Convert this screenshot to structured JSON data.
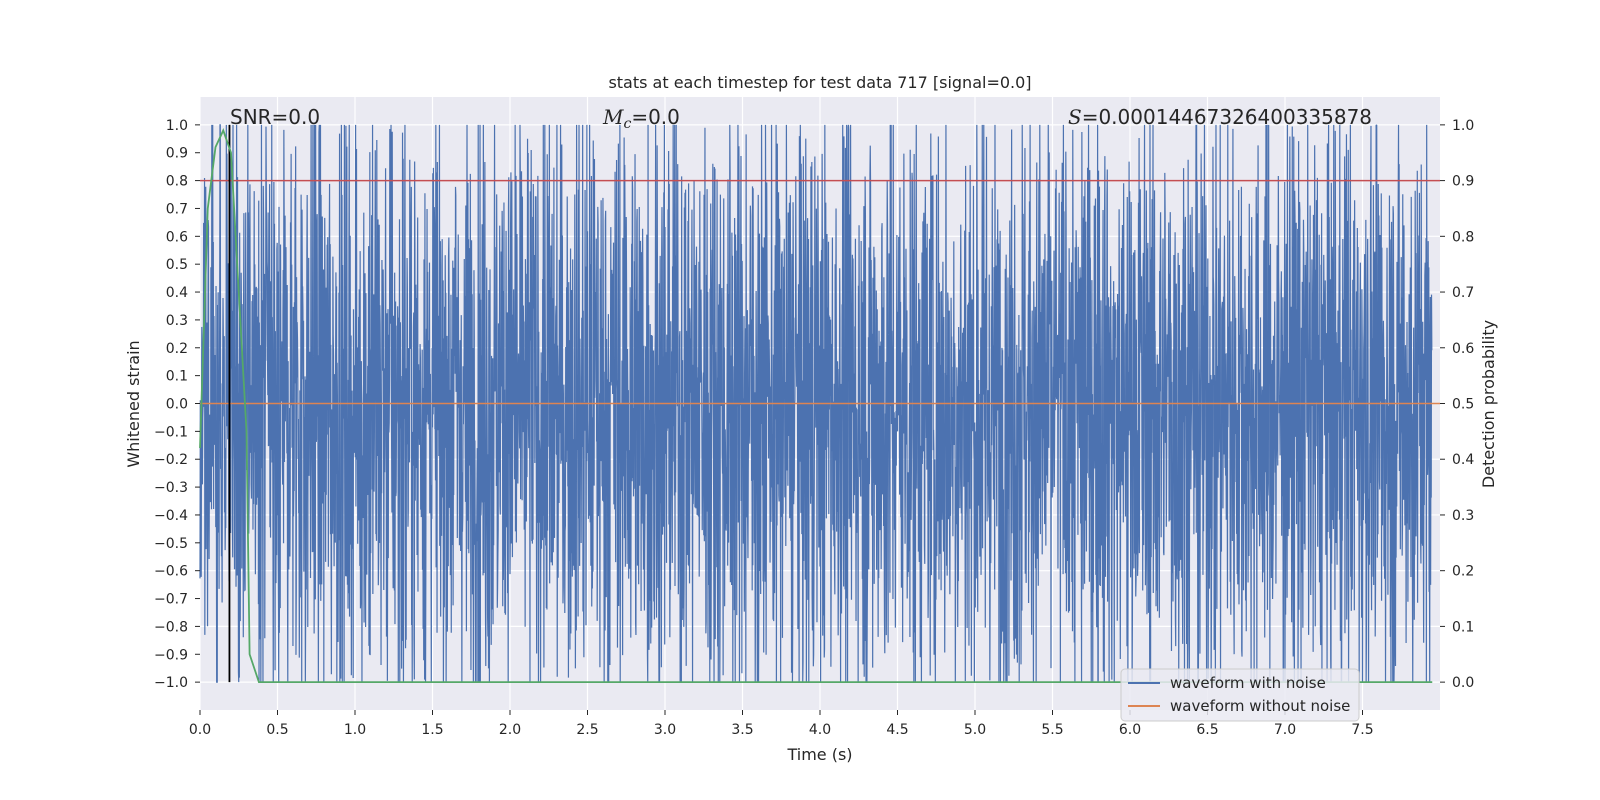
{
  "chart_data": {
    "type": "line",
    "title": "stats at each timestep for test data 717 [signal=0.0]",
    "xlabel": "Time (s)",
    "ylabel_left": "Whitened strain",
    "ylabel_right": "Detection probability",
    "xlim": [
      0.0,
      8.0
    ],
    "ylim_left": [
      -1.1,
      1.1
    ],
    "ylim_right": [
      -0.05,
      1.05
    ],
    "x_ticks": [
      "0.0",
      "0.5",
      "1.0",
      "1.5",
      "2.0",
      "2.5",
      "3.0",
      "3.5",
      "4.0",
      "4.5",
      "5.0",
      "5.5",
      "6.0",
      "6.5",
      "7.0",
      "7.5"
    ],
    "x_tick_values": [
      0.0,
      0.5,
      1.0,
      1.5,
      2.0,
      2.5,
      3.0,
      3.5,
      4.0,
      4.5,
      5.0,
      5.5,
      6.0,
      6.5,
      7.0,
      7.5
    ],
    "y_left_ticks": [
      "1.0",
      "0.9",
      "0.8",
      "0.7",
      "0.6",
      "0.5",
      "0.4",
      "0.3",
      "0.2",
      "0.1",
      "0.0",
      "−0.1",
      "−0.2",
      "−0.3",
      "−0.4",
      "−0.5",
      "−0.6",
      "−0.7",
      "−0.8",
      "−0.9",
      "−1.0"
    ],
    "y_left_tick_values": [
      1.0,
      0.9,
      0.8,
      0.7,
      0.6,
      0.5,
      0.4,
      0.3,
      0.2,
      0.1,
      0.0,
      -0.1,
      -0.2,
      -0.3,
      -0.4,
      -0.5,
      -0.6,
      -0.7,
      -0.8,
      -0.9,
      -1.0
    ],
    "y_right_ticks": [
      "1.0",
      "0.9",
      "0.8",
      "0.7",
      "0.6",
      "0.5",
      "0.4",
      "0.3",
      "0.2",
      "0.1",
      "0.0"
    ],
    "y_right_tick_values": [
      1.0,
      0.9,
      0.8,
      0.7,
      0.6,
      0.5,
      0.4,
      0.3,
      0.2,
      0.1,
      0.0
    ],
    "annotations": {
      "snr": "SNR=0.0",
      "mc_symbol": "M",
      "mc_sub": "c",
      "mc_value": "=0.0",
      "s_symbol": "S",
      "s_value": "=0.00014467326400335878"
    },
    "series": [
      {
        "name": "waveform with noise",
        "color": "#4c72b0",
        "axis": "left",
        "description_range": [
          -1.0,
          1.0
        ],
        "samples_per_second": 512
      },
      {
        "name": "waveform without noise",
        "color": "#dd8452",
        "axis": "left",
        "x": [
          0.0,
          8.0
        ],
        "y": [
          0.0,
          0.0
        ]
      },
      {
        "name": "detection probability",
        "color": "#55a868",
        "axis": "right",
        "x": [
          0.0,
          0.05,
          0.1,
          0.15,
          0.2,
          0.25,
          0.3,
          0.32,
          0.38,
          7.95
        ],
        "y": [
          0.42,
          0.85,
          0.96,
          0.99,
          0.95,
          0.7,
          0.45,
          0.05,
          0.0,
          0.0
        ]
      }
    ],
    "threshold": {
      "value": 0.9,
      "axis": "right",
      "color": "#c44e52"
    },
    "vline": {
      "x": 0.19,
      "color": "#000000"
    },
    "legend": {
      "position": "bottom-right",
      "entries": [
        "waveform with noise",
        "waveform without noise"
      ]
    }
  }
}
